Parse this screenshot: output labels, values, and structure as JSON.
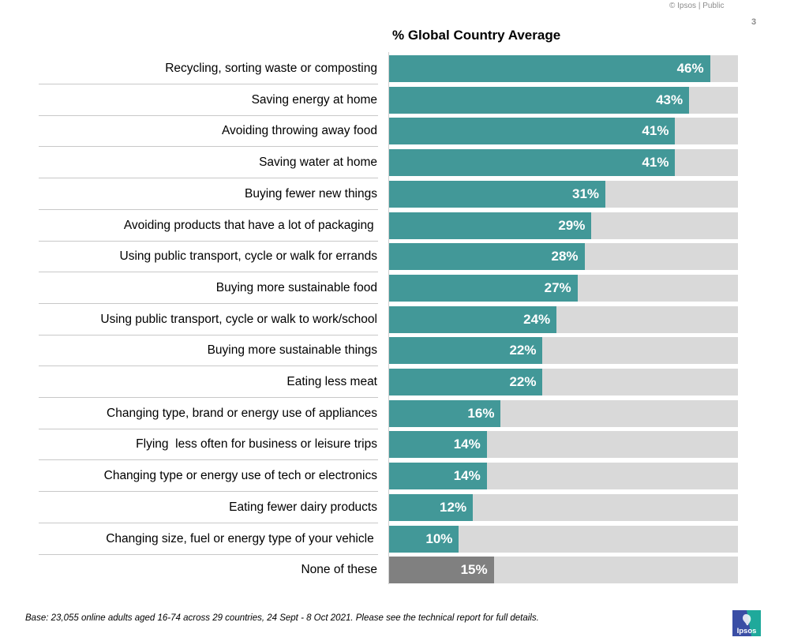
{
  "header": {
    "copyright": "© Ipsos | Public",
    "page_number": "3"
  },
  "footer": {
    "base_note": "Base: 23,055 online adults aged 16-74 across 29 countries,  24 Sept - 8 Oct 2021. Please see the technical report for full details.",
    "logo_text": "Ipsos"
  },
  "colors": {
    "bar_primary": "#429898",
    "bar_none": "#808080",
    "bar_background": "#d9d9d9",
    "logo_blue": "#3a4ea5",
    "logo_teal": "#1fa99b"
  },
  "chart_data": {
    "type": "bar",
    "orientation": "horizontal",
    "title": "% Global Country Average",
    "xlabel": "",
    "ylabel": "",
    "xlim": [
      0,
      50
    ],
    "grid": false,
    "legend": "none",
    "categories": [
      "Recycling, sorting waste or composting",
      "Saving energy at home",
      "Avoiding throwing away food",
      "Saving water at home",
      "Buying fewer new things",
      "Avoiding products that have a lot of packaging ",
      "Using public transport, cycle or walk for errands",
      "Buying more sustainable food",
      "Using public transport, cycle or walk to work/school",
      "Buying more sustainable things",
      "Eating less meat",
      "Changing type, brand or energy use of appliances",
      "Flying  less often for business or leisure trips",
      "Changing type or energy use of tech or electronics",
      "Eating fewer dairy products",
      "Changing size, fuel or energy type of your vehicle ",
      "None of these"
    ],
    "values": [
      46,
      43,
      41,
      41,
      31,
      29,
      28,
      27,
      24,
      22,
      22,
      16,
      14,
      14,
      12,
      10,
      15
    ],
    "value_labels": [
      "46%",
      "43%",
      "41%",
      "41%",
      "31%",
      "29%",
      "28%",
      "27%",
      "24%",
      "22%",
      "22%",
      "16%",
      "14%",
      "14%",
      "12%",
      "10%",
      "15%"
    ],
    "highlight": [
      false,
      false,
      false,
      false,
      false,
      false,
      false,
      false,
      false,
      false,
      false,
      false,
      false,
      false,
      false,
      false,
      true
    ]
  }
}
